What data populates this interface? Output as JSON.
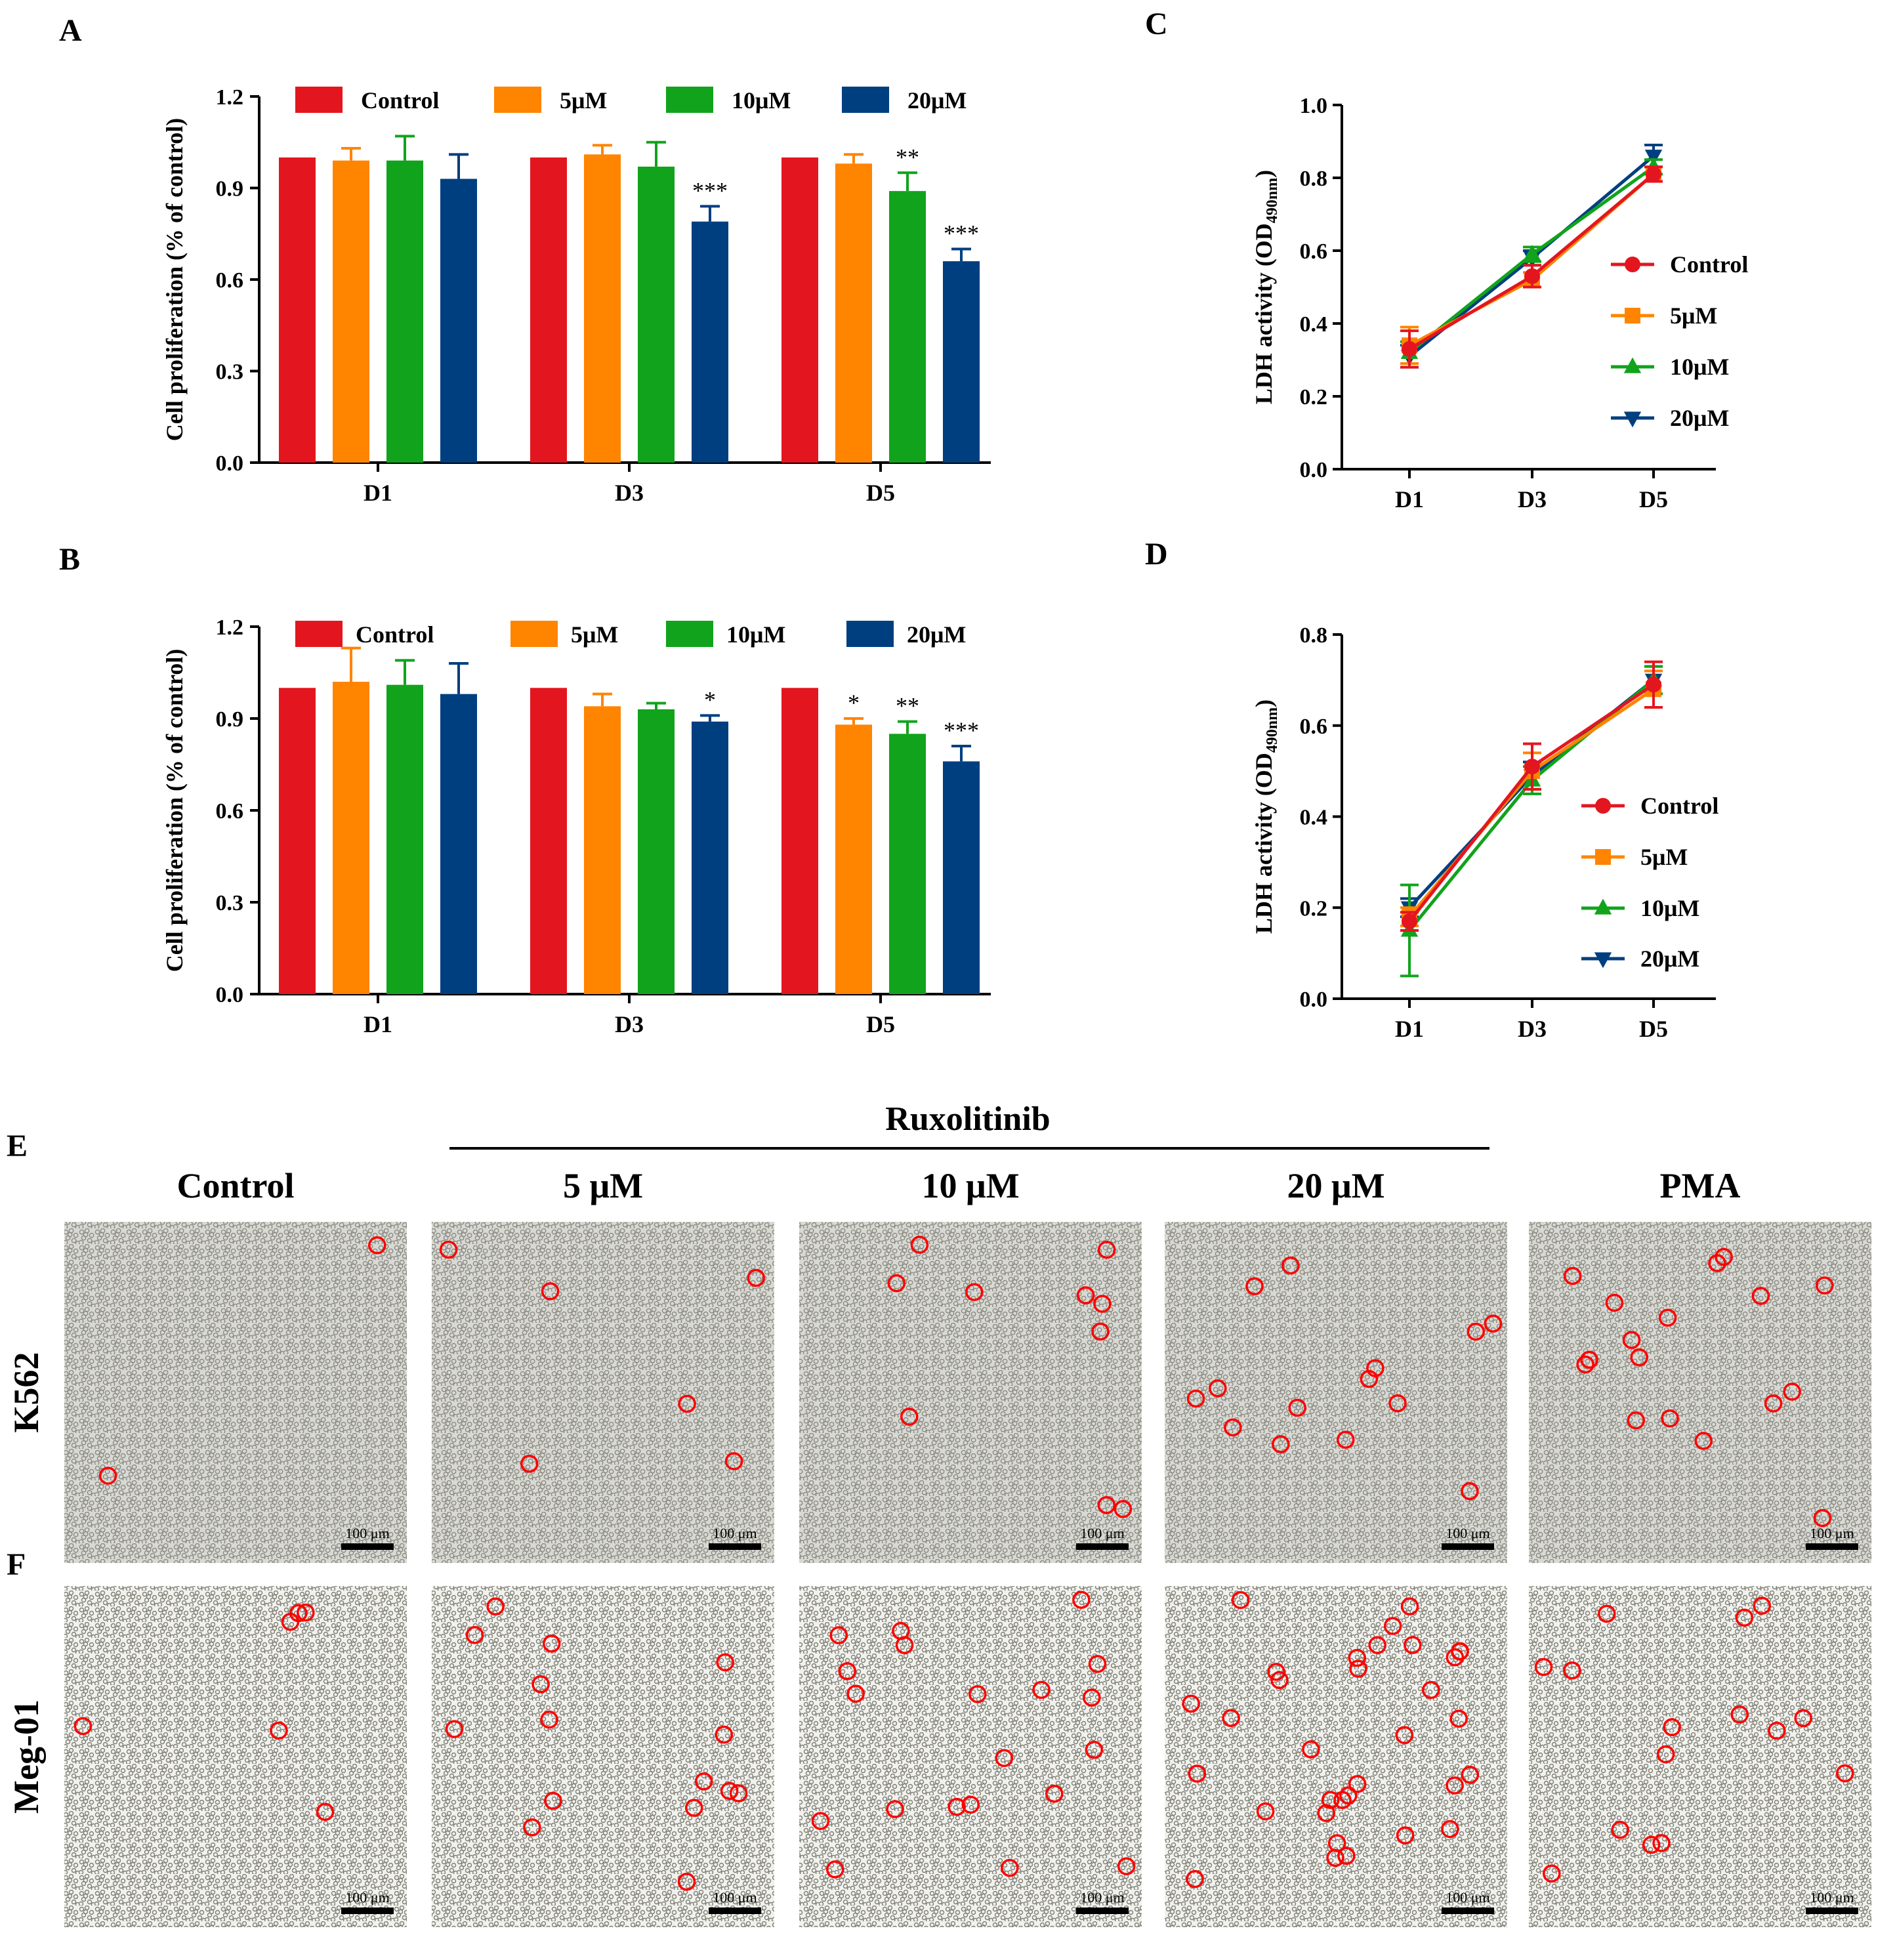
{
  "panels": {
    "A": "A",
    "B": "B",
    "C": "C",
    "D": "D",
    "E": "E",
    "F": "F"
  },
  "colors": {
    "control": "#e3161f",
    "5uM": "#ff8400",
    "10uM": "#11a31c",
    "20uM": "#003f7f",
    "circle": "#ff0000"
  },
  "chart_data": [
    {
      "id": "A",
      "type": "bar",
      "ylabel": "Cell proliferation (% of control)",
      "xlabel": "",
      "categories": [
        "D1",
        "D3",
        "D5"
      ],
      "ylim": [
        0,
        1.2
      ],
      "yticks": [
        "0.0",
        "0.3",
        "0.6",
        "0.9",
        "1.2"
      ],
      "legend_position": "top",
      "series": [
        {
          "name": "Control",
          "key": "control",
          "values": [
            1.0,
            1.0,
            1.0
          ],
          "errors": [
            0,
            0,
            0
          ],
          "sig": [
            "",
            "",
            ""
          ]
        },
        {
          "name": "5μM",
          "key": "5uM",
          "values": [
            0.99,
            1.01,
            0.98
          ],
          "errors": [
            0.04,
            0.03,
            0.03
          ],
          "sig": [
            "",
            "",
            ""
          ]
        },
        {
          "name": "10μM",
          "key": "10uM",
          "values": [
            0.99,
            0.97,
            0.89
          ],
          "errors": [
            0.08,
            0.08,
            0.06
          ],
          "sig": [
            "",
            "",
            "**"
          ]
        },
        {
          "name": "20μM",
          "key": "20uM",
          "values": [
            0.93,
            0.79,
            0.66
          ],
          "errors": [
            0.08,
            0.05,
            0.04
          ],
          "sig": [
            "",
            "***",
            "***"
          ]
        }
      ]
    },
    {
      "id": "B",
      "type": "bar",
      "ylabel": "Cell proliferation (% of control)",
      "xlabel": "",
      "categories": [
        "D1",
        "D3",
        "D5"
      ],
      "ylim": [
        0,
        1.2
      ],
      "yticks": [
        "0.0",
        "0.3",
        "0.6",
        "0.9",
        "1.2"
      ],
      "legend_position": "top",
      "series": [
        {
          "name": "Control",
          "key": "control",
          "values": [
            1.0,
            1.0,
            1.0
          ],
          "errors": [
            0,
            0,
            0
          ],
          "sig": [
            "",
            "",
            ""
          ]
        },
        {
          "name": "5μM",
          "key": "5uM",
          "values": [
            1.02,
            0.94,
            0.88
          ],
          "errors": [
            0.11,
            0.04,
            0.02
          ],
          "sig": [
            "",
            "",
            "*"
          ]
        },
        {
          "name": "10μM",
          "key": "10uM",
          "values": [
            1.01,
            0.93,
            0.85
          ],
          "errors": [
            0.08,
            0.02,
            0.04
          ],
          "sig": [
            "",
            "",
            "**"
          ]
        },
        {
          "name": "20μM",
          "key": "20uM",
          "values": [
            0.98,
            0.89,
            0.76
          ],
          "errors": [
            0.1,
            0.02,
            0.05
          ],
          "sig": [
            "",
            "*",
            "***"
          ]
        }
      ]
    },
    {
      "id": "C",
      "type": "line",
      "ylabel_main": "LDH activity (OD",
      "ylabel_sub": "490nm",
      "ylabel_close": ")",
      "categories": [
        "D1",
        "D3",
        "D5"
      ],
      "ylim": [
        0,
        1.0
      ],
      "yticks": [
        "0.0",
        "0.2",
        "0.4",
        "0.6",
        "0.8",
        "1.0"
      ],
      "legend_position": "right",
      "series": [
        {
          "name": "Control",
          "key": "control",
          "marker": "circle",
          "values": [
            0.33,
            0.53,
            0.81
          ],
          "errors": [
            0.05,
            0.03,
            0.02
          ]
        },
        {
          "name": "5μM",
          "key": "5uM",
          "marker": "square",
          "values": [
            0.34,
            0.52,
            0.81
          ],
          "errors": [
            0.05,
            0.02,
            0.02
          ]
        },
        {
          "name": "10μM",
          "key": "10uM",
          "marker": "triangle-up",
          "values": [
            0.32,
            0.59,
            0.83
          ],
          "errors": [
            0.03,
            0.02,
            0.02
          ]
        },
        {
          "name": "20μM",
          "key": "20uM",
          "marker": "triangle-down",
          "values": [
            0.31,
            0.58,
            0.86
          ],
          "errors": [
            0.03,
            0.02,
            0.03
          ]
        }
      ]
    },
    {
      "id": "D",
      "type": "line",
      "ylabel_main": "LDH activity (OD",
      "ylabel_sub": "490nm",
      "ylabel_close": ")",
      "categories": [
        "D1",
        "D3",
        "D5"
      ],
      "ylim": [
        0,
        0.8
      ],
      "yticks": [
        "0.0",
        "0.2",
        "0.4",
        "0.6",
        "0.8"
      ],
      "legend_position": "right",
      "series": [
        {
          "name": "Control",
          "key": "control",
          "marker": "circle",
          "values": [
            0.17,
            0.51,
            0.69
          ],
          "errors": [
            0.02,
            0.05,
            0.05
          ]
        },
        {
          "name": "5μM",
          "key": "5uM",
          "marker": "square",
          "values": [
            0.18,
            0.5,
            0.68
          ],
          "errors": [
            0.02,
            0.04,
            0.04
          ]
        },
        {
          "name": "10μM",
          "key": "10uM",
          "marker": "triangle-up",
          "values": [
            0.15,
            0.48,
            0.7
          ],
          "errors": [
            0.1,
            0.03,
            0.03
          ]
        },
        {
          "name": "20μM",
          "key": "20uM",
          "marker": "triangle-down",
          "values": [
            0.2,
            0.49,
            0.7
          ],
          "errors": [
            0.02,
            0.03,
            0.03
          ]
        }
      ]
    }
  ],
  "micrographs": {
    "treatment_label": "Ruxolitinib",
    "columns": [
      "Control",
      "5 μM",
      "10 μM",
      "20 μM",
      "PMA"
    ],
    "rows": [
      "K562",
      "Meg-01"
    ],
    "scale_bar": "100 μm",
    "circle_counts": {
      "K562": [
        2,
        6,
        10,
        14,
        17
      ],
      "Meg-01": [
        6,
        15,
        20,
        33,
        15
      ]
    }
  }
}
